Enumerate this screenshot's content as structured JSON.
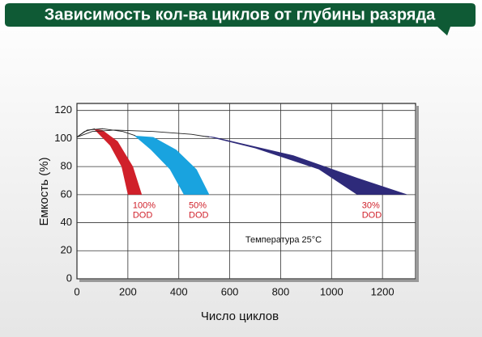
{
  "chart_data": {
    "type": "band",
    "title": "Зависимость кол-ва циклов от глубины разряда",
    "xlabel": "Число циклов",
    "ylabel": "Емкость (%)",
    "annotation": "Температура 25°С",
    "xlim": [
      0,
      1330
    ],
    "ylim": [
      0,
      125
    ],
    "xticks": [
      0,
      200,
      400,
      600,
      800,
      1000,
      1200
    ],
    "yticks": [
      0,
      20,
      40,
      60,
      80,
      100,
      120
    ],
    "grid": true,
    "series": [
      {
        "name": [
          "100%",
          "DOD"
        ],
        "color": "#d0202a",
        "label_color": "#d0202a",
        "x": [
          65,
          130,
          175,
          200,
          255,
          220,
          160,
          100
        ],
        "values": [
          107,
          95,
          80,
          60,
          60,
          80,
          98,
          106
        ]
      },
      {
        "name": [
          "50%",
          "DOD"
        ],
        "color": "#19a3df",
        "label_color": "#d0202a",
        "x": [
          225,
          290,
          365,
          420,
          520,
          470,
          390,
          300
        ],
        "values": [
          102,
          92,
          78,
          60,
          60,
          78,
          92,
          101
        ]
      },
      {
        "name": [
          "30%",
          "DOD"
        ],
        "color": "#2e2a7a",
        "label_color": "#d0202a",
        "x": [
          500,
          700,
          950,
          1100,
          1300,
          1100,
          850,
          540
        ],
        "values": [
          102,
          93,
          78,
          60,
          60,
          72,
          88,
          101
        ]
      }
    ],
    "lines": [
      {
        "color": "#222222",
        "x": [
          0,
          30,
          70
        ],
        "values": [
          101,
          105,
          107
        ]
      },
      {
        "color": "#222222",
        "x": [
          0,
          40,
          100,
          180,
          230
        ],
        "values": [
          101,
          106,
          107,
          105,
          102
        ]
      },
      {
        "color": "#222222",
        "x": [
          0,
          60,
          150,
          300,
          450,
          520
        ],
        "values": [
          101,
          105,
          106,
          105,
          103,
          101
        ]
      }
    ]
  }
}
